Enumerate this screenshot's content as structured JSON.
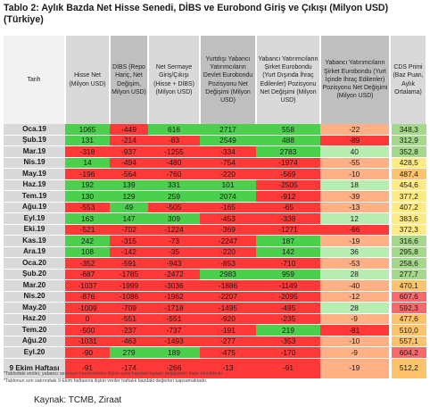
{
  "title": "Tablo 2: Aylık Bazda Net Hisse Senedi, DİBS ve Eurobond Giriş ve Çıkışı (Milyon USD) (Türkiye)",
  "headers": [
    "Tarih",
    "Hisse Net (Milyon USD)",
    "DİBS (Repo Hariç, Net Değişim, Milyon USD)",
    "Net Sermaye Giriş/Çıkışı (Hisse + DİBS) (Milyon USD)",
    "Yurtdışı Yabancı Yatırımcıların Devlet Eurobondu Pozisyonu Net Değişimi (Milyon USD)",
    "Yabancı Yatırımcıların Şirket Eurobondu (Yurt Dışında İhraç Edilenler) Pozisyonu Net Değişimi (Milyon USD)",
    "Yabancı Yatırımcıların Şirket Eurobondu (Yurt İçinde İhraç Edilenler) Pozisyonu Net Değişimi (Milyon USD)",
    "CDS Primi (Baz Puan, Aylık Ortalama)"
  ],
  "colors": {
    "pos": "#4ccf4c",
    "neg": "#ff3838",
    "posLight": "#b7edb0",
    "negLight": "#ffb185",
    "cdsGreen": "#a5d88a",
    "cdsYellow": "#ffeb84",
    "cdsOrange": "#ffc36b",
    "cdsRed": "#f8696b"
  },
  "rows": [
    {
      "date": "Oca.19",
      "v": [
        "1065",
        "-449",
        "616",
        "2717",
        "558",
        "-22",
        "348,3"
      ],
      "c": [
        "pos",
        "neg",
        "pos",
        "pos",
        "pos",
        "negLight",
        "cdsGreen"
      ]
    },
    {
      "date": "Şub.19",
      "v": [
        "131",
        "-214",
        "-83",
        "2549",
        "488",
        "-89",
        "312,9"
      ],
      "c": [
        "pos",
        "neg",
        "neg",
        "pos",
        "pos",
        "neg",
        "cdsGreen"
      ]
    },
    {
      "date": "Mar.19",
      "v": [
        "-318",
        "-937",
        "-1255",
        "-334",
        "2783",
        "40",
        "352,8"
      ],
      "c": [
        "neg",
        "neg",
        "neg",
        "neg",
        "pos",
        "posLight",
        "cdsGreen"
      ]
    },
    {
      "date": "Nis.19",
      "v": [
        "14",
        "-494",
        "-480",
        "-754",
        "-1974",
        "-55",
        "428,5"
      ],
      "c": [
        "pos",
        "neg",
        "neg",
        "neg",
        "neg",
        "negLight",
        "cdsYellow"
      ]
    },
    {
      "date": "May.19",
      "v": [
        "-196",
        "-564",
        "-760",
        "-220",
        "-569",
        "-10",
        "487,4"
      ],
      "c": [
        "neg",
        "neg",
        "neg",
        "neg",
        "neg",
        "negLight",
        "cdsOrange"
      ]
    },
    {
      "date": "Haz.19",
      "v": [
        "192",
        "139",
        "331",
        "101",
        "-2505",
        "18",
        "454,6"
      ],
      "c": [
        "pos",
        "pos",
        "pos",
        "pos",
        "neg",
        "posLight",
        "cdsYellow"
      ]
    },
    {
      "date": "Tem.19",
      "v": [
        "130",
        "129",
        "259",
        "2074",
        "-912",
        "-39",
        "377,2"
      ],
      "c": [
        "pos",
        "pos",
        "pos",
        "pos",
        "neg",
        "negLight",
        "cdsYellow"
      ]
    },
    {
      "date": "Ağu.19",
      "v": [
        "-553",
        "49",
        "-505",
        "-165",
        "-65",
        "-13",
        "407,2"
      ],
      "c": [
        "neg",
        "pos",
        "neg",
        "neg",
        "neg",
        "negLight",
        "cdsYellow"
      ]
    },
    {
      "date": "Eyl.19",
      "v": [
        "163",
        "147",
        "309",
        "-453",
        "-338",
        "12",
        "383,6"
      ],
      "c": [
        "pos",
        "pos",
        "pos",
        "neg",
        "neg",
        "posLight",
        "cdsYellow"
      ]
    },
    {
      "date": "Eki.19",
      "v": [
        "-521",
        "-702",
        "-1224",
        "-369",
        "-1271",
        "-66",
        "372,3"
      ],
      "c": [
        "neg",
        "neg",
        "neg",
        "neg",
        "neg",
        "neg",
        "cdsYellow"
      ]
    },
    {
      "date": "Kas.19",
      "v": [
        "242",
        "-315",
        "-73",
        "-2247",
        "187",
        "-19",
        "316,6"
      ],
      "c": [
        "pos",
        "neg",
        "neg",
        "neg",
        "pos",
        "negLight",
        "cdsGreen"
      ]
    },
    {
      "date": "Ara.19",
      "v": [
        "108",
        "-142",
        "-35",
        "-220",
        "142",
        "36",
        "295,8"
      ],
      "c": [
        "pos",
        "neg",
        "neg",
        "neg",
        "pos",
        "posLight",
        "cdsGreen"
      ]
    },
    {
      "date": "Oca.20",
      "v": [
        "-352",
        "-591",
        "-943",
        "-853",
        "-710",
        "-53",
        "258,6"
      ],
      "c": [
        "neg",
        "neg",
        "neg",
        "neg",
        "neg",
        "negLight",
        "cdsGreen"
      ]
    },
    {
      "date": "Şub.20",
      "v": [
        "-687",
        "-1785",
        "-2472",
        "2983",
        "959",
        "28",
        "277,7"
      ],
      "c": [
        "neg",
        "neg",
        "neg",
        "pos",
        "pos",
        "posLight",
        "cdsGreen"
      ]
    },
    {
      "date": "Mar.20",
      "v": [
        "-1037",
        "-1999",
        "-3036",
        "-1886",
        "-1149",
        "-40",
        "470,1"
      ],
      "c": [
        "neg",
        "neg",
        "neg",
        "neg",
        "neg",
        "negLight",
        "cdsOrange"
      ]
    },
    {
      "date": "Nis.20",
      "v": [
        "-876",
        "-1086",
        "-1962",
        "-2207",
        "-2095",
        "-12",
        "607,6"
      ],
      "c": [
        "neg",
        "neg",
        "neg",
        "neg",
        "neg",
        "negLight",
        "cdsRed"
      ]
    },
    {
      "date": "May.20",
      "v": [
        "-1009",
        "-709",
        "-1718",
        "-1495",
        "-495",
        "28",
        "592,3"
      ],
      "c": [
        "neg",
        "neg",
        "neg",
        "neg",
        "neg",
        "posLight",
        "cdsRed"
      ]
    },
    {
      "date": "Haz.20",
      "v": [
        "0",
        "-551",
        "-551",
        "-920",
        "-235",
        "-9",
        "477,6"
      ],
      "c": [
        "neg",
        "neg",
        "neg",
        "neg",
        "neg",
        "negLight",
        "cdsOrange"
      ]
    },
    {
      "date": "Tem.20",
      "v": [
        "-500",
        "-237",
        "-737",
        "-191",
        "219",
        "-81",
        "510,0"
      ],
      "c": [
        "neg",
        "neg",
        "neg",
        "neg",
        "pos",
        "neg",
        "cdsOrange"
      ]
    },
    {
      "date": "Ağu.20",
      "v": [
        "-1031",
        "-463",
        "-1493",
        "-277",
        "-353",
        "-10",
        "557,1"
      ],
      "c": [
        "neg",
        "neg",
        "neg",
        "neg",
        "neg",
        "negLight",
        "cdsOrange"
      ]
    },
    {
      "date": "Eyl.20",
      "v": [
        "-90",
        "279",
        "189",
        "-475",
        "-170",
        "-9",
        "604,2"
      ],
      "c": [
        "neg",
        "pos",
        "pos",
        "neg",
        "neg",
        "negLight",
        "cdsRed"
      ]
    },
    {
      "date": "9 Ekim Haftası",
      "v": [
        "-91",
        "-174",
        "-266",
        "-13",
        "-91",
        "-19",
        "512,2"
      ],
      "c": [
        "neg",
        "neg",
        "neg",
        "neg",
        "neg",
        "negLight",
        "cdsOrange"
      ]
    }
  ],
  "notes": [
    "*Tablodaki veriler, yabancı sermaye hareketlerine ilişkin aylık bazdaki toplam değişimleri ifade etmektedir.",
    "*Tablonun son satırındaki 9 Ekim haftasına ilişkin veriler haftalık bazdaki değerleri kapsamaktadır."
  ],
  "source": "Kaynak: TCMB, Ziraat"
}
